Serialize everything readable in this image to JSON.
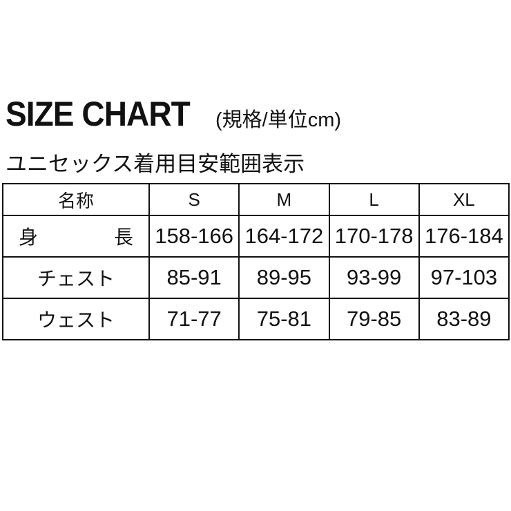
{
  "title": "SIZE CHART",
  "unit_note": "(規格/単位cm)",
  "subtitle": "ユニセックス着用目安範囲表示",
  "table": {
    "header": [
      "名称",
      "S",
      "M",
      "L",
      "XL"
    ],
    "rows": [
      {
        "label": "身　長",
        "values": [
          "158-166",
          "164-172",
          "170-178",
          "176-184"
        ]
      },
      {
        "label": "チェスト",
        "values": [
          "85-91",
          "89-95",
          "93-99",
          "97-103"
        ]
      },
      {
        "label": "ウェスト",
        "values": [
          "71-77",
          "75-81",
          "79-85",
          "83-89"
        ]
      }
    ]
  }
}
